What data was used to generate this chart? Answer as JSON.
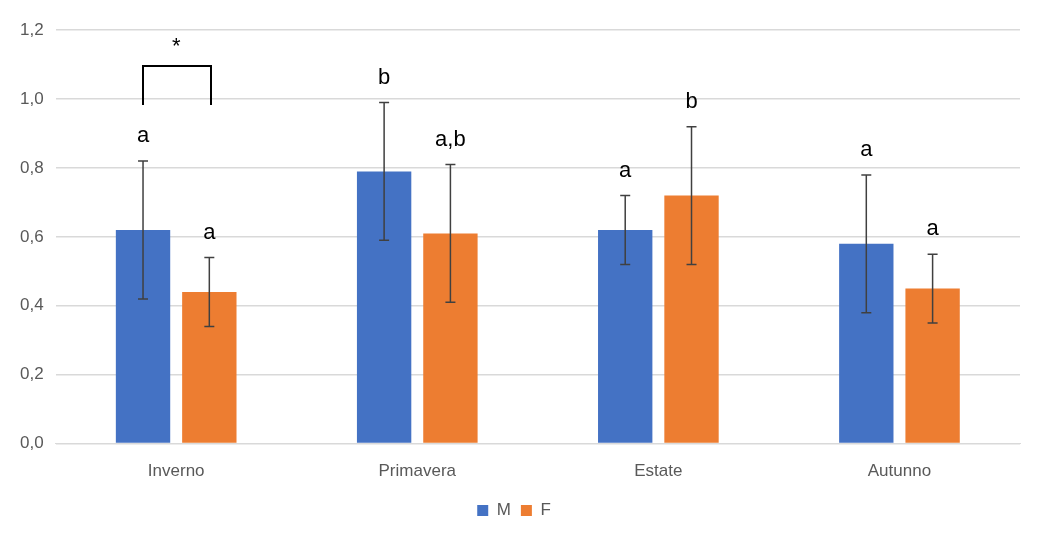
{
  "chart_data": {
    "type": "bar",
    "categories": [
      "Inverno",
      "Primavera",
      "Estate",
      "Autunno"
    ],
    "series": [
      {
        "name": "M",
        "color": "#4472c4",
        "values": [
          0.62,
          0.79,
          0.62,
          0.58
        ],
        "errors": [
          0.2,
          0.2,
          0.1,
          0.2
        ]
      },
      {
        "name": "F",
        "color": "#ed7d31",
        "values": [
          0.44,
          0.61,
          0.72,
          0.45
        ],
        "errors": [
          0.1,
          0.2,
          0.2,
          0.1
        ]
      }
    ],
    "ylim": [
      0,
      1.2
    ],
    "yticks": [
      {
        "value": 0,
        "label": "0,0"
      },
      {
        "value": 0.2,
        "label": "0,2"
      },
      {
        "value": 0.4,
        "label": "0,4"
      },
      {
        "value": 0.6,
        "label": "0,6"
      },
      {
        "value": 0.8,
        "label": "0,8"
      },
      {
        "value": 1,
        "label": "1,0"
      },
      {
        "value": 1.2,
        "label": "1,2"
      }
    ],
    "grid": "y",
    "legend": "bottom",
    "annotations": [
      "*",
      "a",
      "b",
      "a",
      "a",
      "a",
      "a,b",
      "b",
      "a"
    ]
  }
}
